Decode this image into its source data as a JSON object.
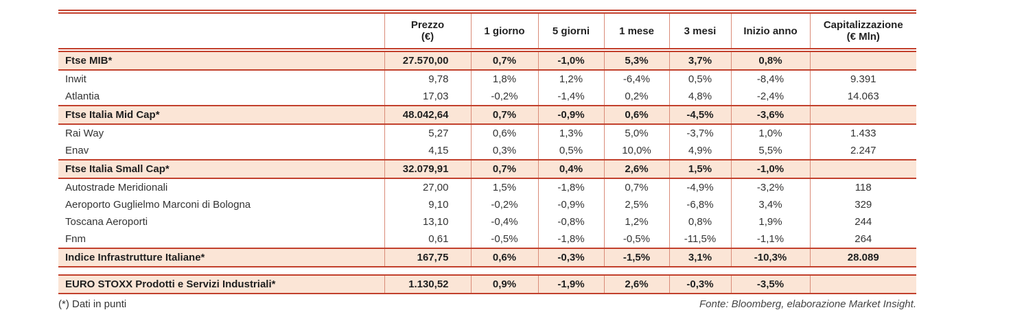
{
  "colors": {
    "rule": "#c2402c",
    "rule_soft": "#d98a77",
    "row_highlight": "#fbe5d6",
    "text": "#333333"
  },
  "table": {
    "columns": [
      {
        "label": ""
      },
      {
        "label": "Prezzo\n(€)"
      },
      {
        "label": "1 giorno"
      },
      {
        "label": "5 giorni"
      },
      {
        "label": "1 mese"
      },
      {
        "label": "3 mesi"
      },
      {
        "label": "Inizio anno"
      },
      {
        "label": "Capitalizzazione\n(€ Mln)"
      }
    ],
    "rows": [
      {
        "type": "index",
        "name": "Ftse MIB*",
        "cells": [
          "27.570,00",
          "0,7%",
          "-1,0%",
          "5,3%",
          "3,7%",
          "0,8%",
          ""
        ]
      },
      {
        "type": "stock",
        "name": "Inwit",
        "cells": [
          "9,78",
          "1,8%",
          "1,2%",
          "-6,4%",
          "0,5%",
          "-8,4%",
          "9.391"
        ]
      },
      {
        "type": "stock",
        "name": "Atlantia",
        "cells": [
          "17,03",
          "-0,2%",
          "-1,4%",
          "0,2%",
          "4,8%",
          "-2,4%",
          "14.063"
        ]
      },
      {
        "type": "index",
        "name": "Ftse Italia Mid Cap*",
        "cells": [
          "48.042,64",
          "0,7%",
          "-0,9%",
          "0,6%",
          "-4,5%",
          "-3,6%",
          ""
        ]
      },
      {
        "type": "stock",
        "name": "Rai Way",
        "cells": [
          "5,27",
          "0,6%",
          "1,3%",
          "5,0%",
          "-3,7%",
          "1,0%",
          "1.433"
        ]
      },
      {
        "type": "stock",
        "name": "Enav",
        "cells": [
          "4,15",
          "0,3%",
          "0,5%",
          "10,0%",
          "4,9%",
          "5,5%",
          "2.247"
        ]
      },
      {
        "type": "index",
        "name": "Ftse Italia Small Cap*",
        "cells": [
          "32.079,91",
          "0,7%",
          "0,4%",
          "2,6%",
          "1,5%",
          "-1,0%",
          ""
        ]
      },
      {
        "type": "stock",
        "name": "Autostrade Meridionali",
        "cells": [
          "27,00",
          "1,5%",
          "-1,8%",
          "0,7%",
          "-4,9%",
          "-3,2%",
          "118"
        ]
      },
      {
        "type": "stock",
        "name": "Aeroporto Guglielmo Marconi di Bologna",
        "cells": [
          "9,10",
          "-0,2%",
          "-0,9%",
          "2,5%",
          "-6,8%",
          "3,4%",
          "329"
        ]
      },
      {
        "type": "stock",
        "name": "Toscana Aeroporti",
        "cells": [
          "13,10",
          "-0,4%",
          "-0,8%",
          "1,2%",
          "0,8%",
          "1,9%",
          "244"
        ]
      },
      {
        "type": "stock",
        "name": "Fnm",
        "cells": [
          "0,61",
          "-0,5%",
          "-1,8%",
          "-0,5%",
          "-11,5%",
          "-1,1%",
          "264"
        ]
      },
      {
        "type": "index",
        "name": "Indice Infrastrutture Italiane*",
        "cells": [
          "167,75",
          "0,6%",
          "-0,3%",
          "-1,5%",
          "3,1%",
          "-10,3%",
          "28.089"
        ],
        "gap_after": true
      },
      {
        "type": "index",
        "name": "EURO STOXX Prodotti e Servizi Industriali*",
        "cells": [
          "1.130,52",
          "0,9%",
          "-1,9%",
          "2,6%",
          "-0,3%",
          "-3,5%",
          ""
        ]
      }
    ]
  },
  "footer": {
    "note": "(*) Dati in punti",
    "source": "Fonte: Bloomberg, elaborazione Market Insight."
  }
}
